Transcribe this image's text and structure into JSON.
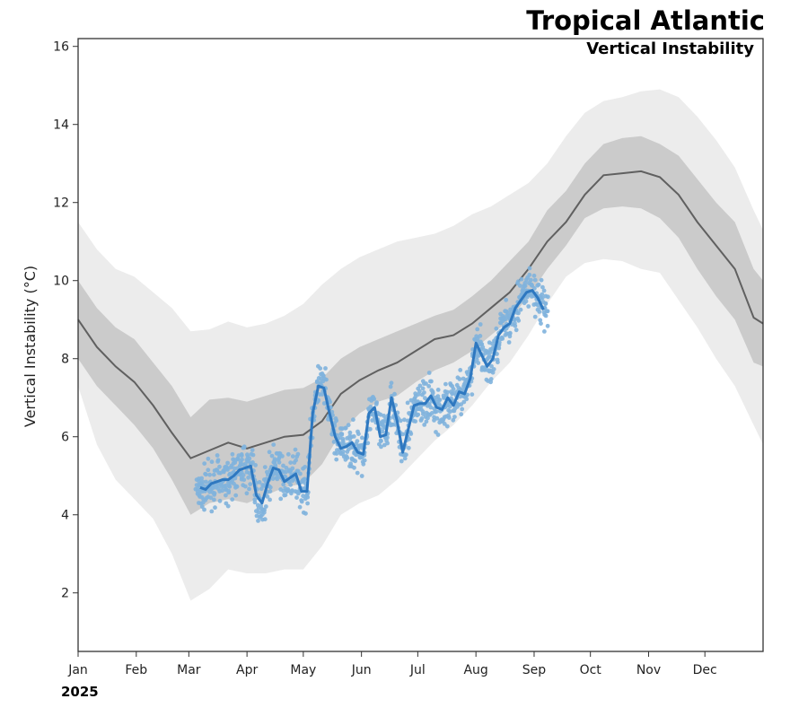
{
  "chart_data": {
    "type": "line",
    "title": "Tropical Atlantic",
    "subtitle": "Vertical Instability",
    "xlabel": "",
    "ylabel": "Vertical Instability (°C)",
    "year_label": "2025",
    "xlim_day": [
      0,
      365
    ],
    "ylim": [
      0.5,
      16.2
    ],
    "grid": false,
    "y_ticks": [
      2,
      4,
      6,
      8,
      10,
      12,
      14,
      16
    ],
    "x_ticks": [
      {
        "label": "Jan",
        "day": 0
      },
      {
        "label": "Feb",
        "day": 31
      },
      {
        "label": "Mar",
        "day": 59
      },
      {
        "label": "Apr",
        "day": 90
      },
      {
        "label": "May",
        "day": 120
      },
      {
        "label": "Jun",
        "day": 151
      },
      {
        "label": "Jul",
        "day": 181
      },
      {
        "label": "Aug",
        "day": 212
      },
      {
        "label": "Sep",
        "day": 243
      },
      {
        "label": "Oct",
        "day": 273
      },
      {
        "label": "Nov",
        "day": 304
      },
      {
        "label": "Dec",
        "day": 334
      }
    ],
    "climatology": {
      "day": [
        0,
        10,
        20,
        30,
        40,
        50,
        60,
        70,
        80,
        90,
        100,
        110,
        120,
        130,
        140,
        150,
        160,
        170,
        180,
        190,
        200,
        210,
        220,
        230,
        240,
        250,
        260,
        270,
        280,
        290,
        300,
        310,
        320,
        330,
        340,
        350,
        360,
        365
      ],
      "mean": [
        9.0,
        8.3,
        7.8,
        7.4,
        6.8,
        6.1,
        5.45,
        5.65,
        5.85,
        5.7,
        5.85,
        6.0,
        6.05,
        6.4,
        7.1,
        7.45,
        7.7,
        7.9,
        8.2,
        8.5,
        8.6,
        8.9,
        9.3,
        9.7,
        10.3,
        11.0,
        11.5,
        12.2,
        12.7,
        12.75,
        12.8,
        12.65,
        12.2,
        11.5,
        10.9,
        10.3,
        9.05,
        8.9
      ],
      "p25": [
        8.0,
        7.3,
        6.8,
        6.3,
        5.7,
        4.9,
        4.0,
        4.3,
        4.4,
        4.3,
        4.5,
        4.7,
        4.8,
        5.3,
        6.1,
        6.6,
        6.9,
        7.05,
        7.4,
        7.7,
        7.9,
        8.2,
        8.6,
        9.0,
        9.6,
        10.3,
        10.9,
        11.6,
        11.85,
        11.9,
        11.85,
        11.6,
        11.1,
        10.3,
        9.6,
        9.0,
        7.9,
        7.8
      ],
      "p75": [
        10.0,
        9.3,
        8.8,
        8.5,
        7.9,
        7.3,
        6.5,
        6.95,
        7.0,
        6.9,
        7.05,
        7.2,
        7.25,
        7.5,
        8.0,
        8.3,
        8.5,
        8.7,
        8.9,
        9.1,
        9.25,
        9.6,
        10.0,
        10.5,
        11.0,
        11.8,
        12.3,
        13.0,
        13.5,
        13.65,
        13.7,
        13.5,
        13.2,
        12.6,
        12.0,
        11.5,
        10.3,
        10.0
      ],
      "p05": [
        7.3,
        5.8,
        4.9,
        4.4,
        3.9,
        3.0,
        1.8,
        2.1,
        2.6,
        2.5,
        2.5,
        2.6,
        2.6,
        3.2,
        4.0,
        4.3,
        4.5,
        4.9,
        5.4,
        5.9,
        6.3,
        6.8,
        7.4,
        7.9,
        8.6,
        9.4,
        10.1,
        10.45,
        10.55,
        10.5,
        10.3,
        10.2,
        9.5,
        8.8,
        8.0,
        7.3,
        6.3,
        5.8
      ],
      "p95": [
        11.5,
        10.8,
        10.3,
        10.1,
        9.7,
        9.3,
        8.7,
        8.75,
        8.95,
        8.8,
        8.9,
        9.1,
        9.4,
        9.9,
        10.3,
        10.6,
        10.8,
        11.0,
        11.1,
        11.2,
        11.4,
        11.7,
        11.9,
        12.2,
        12.5,
        13.0,
        13.7,
        14.3,
        14.6,
        14.7,
        14.85,
        14.9,
        14.7,
        14.2,
        13.6,
        12.9,
        11.8,
        11.3
      ]
    },
    "observed_2025": {
      "day": [
        65,
        68,
        71,
        74,
        77,
        80,
        83,
        86,
        89,
        92,
        95,
        98,
        101,
        104,
        107,
        110,
        113,
        116,
        119,
        122,
        125,
        128,
        131,
        134,
        137,
        140,
        143,
        146,
        149,
        152,
        155,
        158,
        161,
        164,
        167,
        170,
        173,
        176,
        179,
        182,
        185,
        188,
        191,
        194,
        197,
        200,
        203,
        206,
        209,
        212,
        215,
        218,
        221,
        224,
        227,
        230,
        233,
        236,
        239,
        242,
        245,
        248
      ],
      "value": [
        4.7,
        4.65,
        4.8,
        4.85,
        4.9,
        4.9,
        5.0,
        5.15,
        5.2,
        5.25,
        4.5,
        4.3,
        4.8,
        5.2,
        5.15,
        4.85,
        4.95,
        5.05,
        4.6,
        4.6,
        6.6,
        7.3,
        7.25,
        6.6,
        6.0,
        5.7,
        5.75,
        5.85,
        5.6,
        5.55,
        6.6,
        6.75,
        6.0,
        6.05,
        7.0,
        6.4,
        5.6,
        6.2,
        6.8,
        6.85,
        6.85,
        7.05,
        6.75,
        6.7,
        7.0,
        6.8,
        7.15,
        7.1,
        7.5,
        8.4,
        8.1,
        7.8,
        8.0,
        8.6,
        8.8,
        8.9,
        9.3,
        9.5,
        9.7,
        9.75,
        9.55,
        9.25
      ],
      "daily_spread": 0.55
    },
    "colors": {
      "band_90": "#ececec",
      "band_50": "#cbcbcb",
      "mean_line": "#606060",
      "observed_line": "#2e78c0",
      "observed_dots": "#7fb2dd"
    }
  }
}
